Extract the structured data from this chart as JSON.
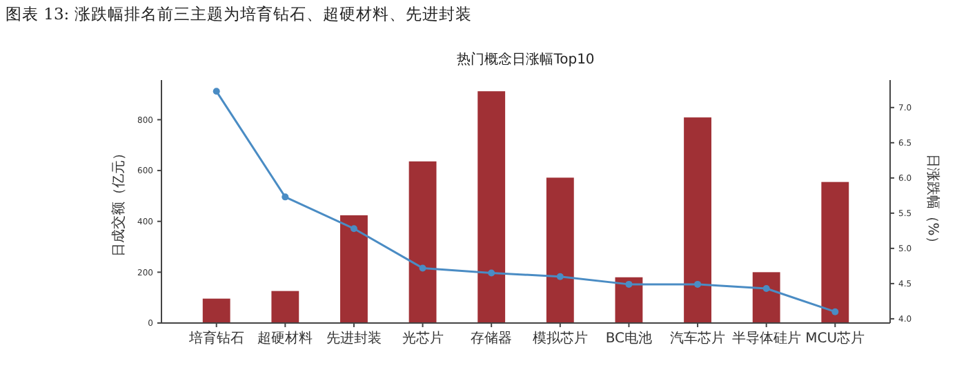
{
  "chart_data": {
    "type": "bar",
    "title": "热门概念日涨幅Top10",
    "annotations": [
      "图表 13: 涨跌幅排名前三主题为培育钻石、超硬材料、先进封装"
    ],
    "categories": [
      "培育钻石",
      "超硬材料",
      "先进封装",
      "光芯片",
      "存储器",
      "模拟芯片",
      "BC电池",
      "汽车芯片",
      "半导体硅片",
      "MCU芯片"
    ],
    "series": [
      {
        "color": "#a03035",
        "values": [
          96,
          126,
          424,
          636,
          912,
          572,
          180,
          809,
          200,
          555
        ]
      },
      {
        "type": "line",
        "axis": "y2",
        "color": "#4a8cc4",
        "values": [
          7.23,
          5.73,
          5.28,
          4.72,
          4.65,
          4.6,
          4.49,
          4.49,
          4.43,
          4.1
        ]
      }
    ],
    "ylabel": "日成交额（亿元）",
    "y2label": "日涨跌幅（%）",
    "ylim": [
      0,
      956
    ],
    "yticks": [
      0,
      200,
      400,
      600,
      800
    ],
    "y2lim": [
      3.94,
      7.39
    ],
    "y2ticks": [
      {
        "value": 4,
        "label": "4.0"
      },
      {
        "value": 4.5,
        "label": "4.5"
      },
      {
        "value": 5,
        "label": "5.0"
      },
      {
        "value": 5.5,
        "label": "5.5"
      },
      {
        "value": 6,
        "label": "6.0"
      },
      {
        "value": 6.5,
        "label": "6.5"
      },
      {
        "value": 7,
        "label": "7.0"
      }
    ],
    "marker": "circle",
    "line_style": "solid",
    "grid": false
  }
}
